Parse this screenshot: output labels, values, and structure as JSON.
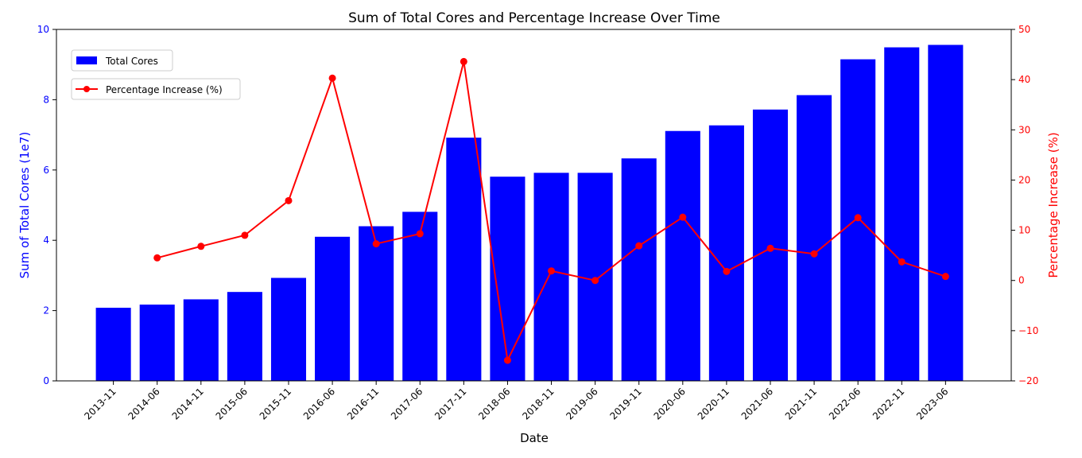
{
  "chart_data": {
    "type": "bar",
    "title": "Sum of Total Cores and Percentage Increase Over Time",
    "xlabel": "Date",
    "ylabel_left": "Sum of Total Cores (1e7)",
    "ylabel_right": "Percentage Increase (%)",
    "categories": [
      "2013-11",
      "2014-06",
      "2014-11",
      "2015-06",
      "2015-11",
      "2016-06",
      "2016-11",
      "2017-06",
      "2017-11",
      "2018-06",
      "2018-11",
      "2019-06",
      "2019-11",
      "2020-06",
      "2020-11",
      "2021-06",
      "2021-11",
      "2022-06",
      "2022-11",
      "2023-06"
    ],
    "ylim_left": [
      0,
      10
    ],
    "yticks_left": [
      0,
      2,
      4,
      6,
      8,
      10
    ],
    "ylim_right": [
      -20,
      50
    ],
    "yticks_right": [
      -20,
      -10,
      0,
      10,
      20,
      30,
      40,
      50
    ],
    "grid": false,
    "series": [
      {
        "name": "Total Cores",
        "kind": "bar",
        "axis": "left",
        "color": "#0000ff",
        "values": [
          2.08,
          2.17,
          2.32,
          2.53,
          2.93,
          4.1,
          4.4,
          4.81,
          6.92,
          5.81,
          5.92,
          5.92,
          6.33,
          7.11,
          7.27,
          7.72,
          8.13,
          9.15,
          9.49,
          9.56
        ]
      },
      {
        "name": "Percentage Increase (%)",
        "kind": "line",
        "axis": "right",
        "color": "#ff0000",
        "values": [
          null,
          4.5,
          6.8,
          9.0,
          15.9,
          40.3,
          7.3,
          9.3,
          43.6,
          -15.9,
          1.9,
          0.0,
          6.9,
          12.6,
          1.8,
          6.4,
          5.3,
          12.5,
          3.7,
          0.8
        ]
      }
    ],
    "legend_placement": "top-left",
    "left_axis_color": "#0000ff",
    "right_axis_color": "#ff0000"
  }
}
